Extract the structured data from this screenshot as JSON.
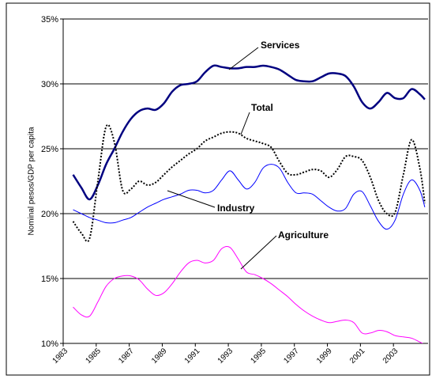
{
  "chart_data": {
    "type": "line",
    "y_label": "Nominal pesos/GDP per capita",
    "x": [
      1983.6,
      1984.1,
      1984.6,
      1985.1,
      1985.6,
      1986.1,
      1986.6,
      1987.1,
      1987.6,
      1988.1,
      1988.6,
      1989.1,
      1989.6,
      1990.1,
      1990.6,
      1991.1,
      1991.6,
      1992.1,
      1992.6,
      1993.1,
      1993.6,
      1994.1,
      1994.6,
      1995.1,
      1995.6,
      1996.1,
      1996.6,
      1997.1,
      1997.6,
      1998.1,
      1998.6,
      1999.1,
      1999.6,
      2000.1,
      2000.6,
      2001.1,
      2001.6,
      2002.1,
      2002.6,
      2003.1,
      2003.6,
      2004.1,
      2004.6,
      2004.9
    ],
    "series": [
      {
        "name": "Services",
        "color": "#000080",
        "values": [
          23,
          22.0,
          21.1,
          22.2,
          23.8,
          25.0,
          26.3,
          27.3,
          27.9,
          28.1,
          28.0,
          28.5,
          29.4,
          29.9,
          30.0,
          30.2,
          30.9,
          31.4,
          31.3,
          31.2,
          31.2,
          31.3,
          31.3,
          31.4,
          31.3,
          31.1,
          30.7,
          30.3,
          30.2,
          30.2,
          30.5,
          30.8,
          30.8,
          30.6,
          29.8,
          28.6,
          28.1,
          28.6,
          29.3,
          28.9,
          28.9,
          29.6,
          29.2,
          28.8
        ]
      },
      {
        "name": "Total",
        "color": "#000000",
        "values": [
          19.4,
          18.5,
          18.1,
          22.5,
          26.7,
          25.5,
          21.8,
          21.9,
          22.5,
          22.2,
          22.4,
          23.0,
          23.6,
          24.1,
          24.6,
          25.0,
          25.6,
          25.9,
          26.2,
          26.3,
          26.2,
          25.8,
          25.6,
          25.4,
          25.1,
          24.0,
          23.1,
          23.0,
          23.2,
          23.4,
          23.3,
          22.8,
          23.4,
          24.4,
          24.4,
          24.1,
          22.8,
          21.0,
          20.0,
          20.1,
          23.0,
          25.7,
          23.5,
          20.8
        ]
      },
      {
        "name": "Industry",
        "color": "#0000ff",
        "values": [
          20.3,
          20.0,
          19.7,
          19.5,
          19.3,
          19.3,
          19.5,
          19.7,
          20.1,
          20.5,
          20.8,
          21.1,
          21.3,
          21.5,
          21.8,
          21.8,
          21.6,
          21.8,
          22.6,
          23.3,
          22.6,
          21.9,
          22.4,
          23.5,
          23.8,
          23.5,
          22.4,
          21.6,
          21.6,
          21.5,
          21.0,
          20.5,
          20.2,
          20.4,
          21.5,
          21.7,
          20.6,
          19.4,
          18.8,
          19.5,
          21.5,
          22.6,
          21.8,
          20.5
        ]
      },
      {
        "name": "Agriculture",
        "color": "#ff00ff",
        "values": [
          12.8,
          12.2,
          12.1,
          13.2,
          14.4,
          15.0,
          15.2,
          15.2,
          14.9,
          14.2,
          13.7,
          13.9,
          14.6,
          15.5,
          16.2,
          16.4,
          16.2,
          16.4,
          17.3,
          17.4,
          16.5,
          15.5,
          15.3,
          15.0,
          14.6,
          14.1,
          13.6,
          13.0,
          12.5,
          12.1,
          11.8,
          11.6,
          11.7,
          11.8,
          11.6,
          10.8,
          10.8,
          11.0,
          10.9,
          10.6,
          10.5,
          10.4,
          10.1,
          9.9
        ]
      }
    ],
    "xlim": [
      1983,
      2005
    ],
    "xticks": [
      1983,
      1985,
      1987,
      1989,
      1991,
      1993,
      1995,
      1997,
      1999,
      2001,
      2003
    ],
    "ylim": [
      10,
      35
    ],
    "yticks": [
      {
        "value": 10,
        "label": "10%"
      },
      {
        "value": 15,
        "label": "15%"
      },
      {
        "value": 20,
        "label": "20%"
      },
      {
        "value": 25,
        "label": "25%"
      },
      {
        "value": 30,
        "label": "30%"
      },
      {
        "value": 35,
        "label": "35%"
      }
    ],
    "grid": true
  }
}
